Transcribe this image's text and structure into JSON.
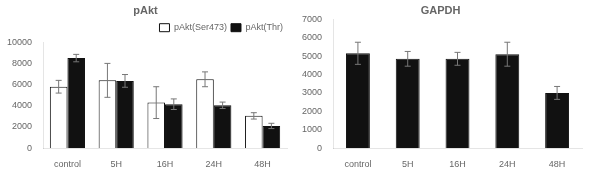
{
  "chart_data": [
    {
      "type": "bar",
      "title": "pAkt",
      "categories": [
        "control",
        "5H",
        "16H",
        "24H",
        "48H"
      ],
      "series": [
        {
          "name": "pAkt(Ser473)",
          "color": "#ffffff",
          "values": [
            5800,
            6400,
            4300,
            6500,
            3050
          ],
          "errors": [
            600,
            1600,
            1500,
            700,
            300
          ]
        },
        {
          "name": "pAkt(Thr)",
          "color": "#111111",
          "values": [
            8500,
            6350,
            4150,
            4050,
            2100
          ],
          "errors": [
            350,
            600,
            500,
            300,
            250
          ]
        }
      ],
      "ylim": [
        0,
        10000
      ],
      "yticks": [
        0,
        2000,
        4000,
        6000,
        8000,
        10000
      ],
      "grid": false,
      "legend": "upper right"
    },
    {
      "type": "bar",
      "title": "GAPDH",
      "categories": [
        "control",
        "5H",
        "16H",
        "24H",
        "48H"
      ],
      "values": [
        5150,
        4850,
        4850,
        5100,
        3000
      ],
      "errors": [
        600,
        400,
        350,
        650,
        350
      ],
      "color": "#111111",
      "ylim": [
        0,
        7000
      ],
      "yticks": [
        0,
        1000,
        2000,
        3000,
        4000,
        5000,
        6000,
        7000
      ],
      "grid": false
    }
  ]
}
